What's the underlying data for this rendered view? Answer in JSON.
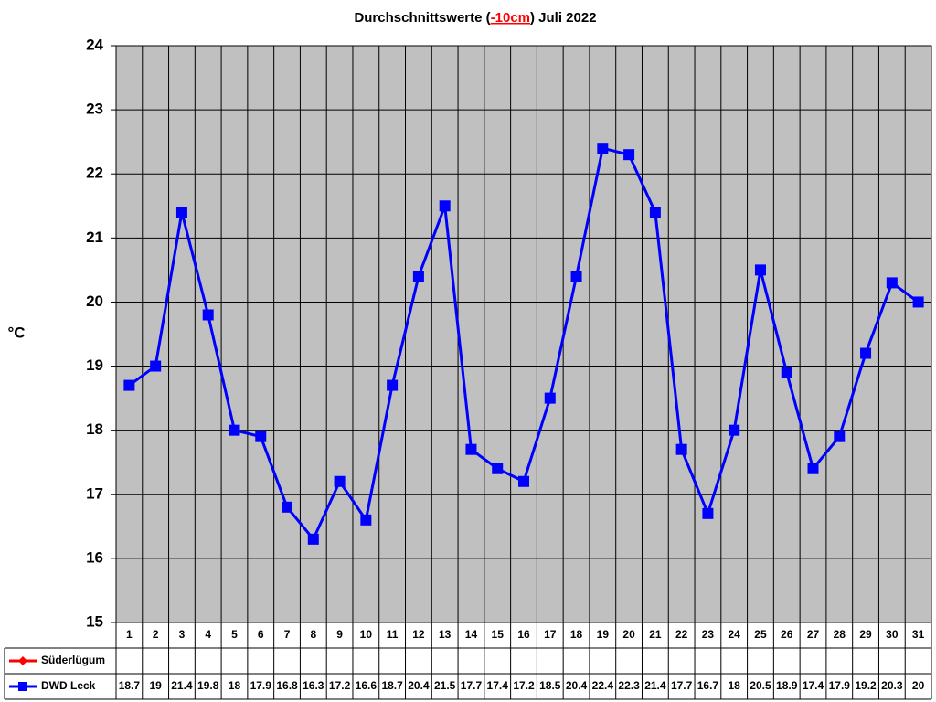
{
  "chart_data": {
    "type": "line",
    "title_parts": [
      "Durchschnittswerte (",
      "-10cm",
      ") Juli 2022"
    ],
    "y_label": "°C",
    "categories": [
      "1",
      "2",
      "3",
      "4",
      "5",
      "6",
      "7",
      "8",
      "9",
      "10",
      "11",
      "12",
      "13",
      "14",
      "15",
      "16",
      "17",
      "18",
      "19",
      "20",
      "21",
      "22",
      "23",
      "24",
      "25",
      "26",
      "27",
      "28",
      "29",
      "30",
      "31"
    ],
    "series": [
      {
        "name": "Süderlügum",
        "color": "#ff0000",
        "marker": "diamond",
        "values": [
          null,
          null,
          null,
          null,
          null,
          null,
          null,
          null,
          null,
          null,
          null,
          null,
          null,
          null,
          null,
          null,
          null,
          null,
          null,
          null,
          null,
          null,
          null,
          null,
          null,
          null,
          null,
          null,
          null,
          null,
          null
        ]
      },
      {
        "name": "DWD Leck",
        "color": "#0000ff",
        "marker": "square",
        "values": [
          18.7,
          19,
          21.4,
          19.8,
          18,
          17.9,
          16.8,
          16.3,
          17.2,
          16.6,
          18.7,
          20.4,
          21.5,
          17.7,
          17.4,
          17.2,
          18.5,
          20.4,
          22.4,
          22.3,
          21.4,
          17.7,
          16.7,
          18,
          20.5,
          18.9,
          17.4,
          17.9,
          19.2,
          20.3,
          20
        ]
      }
    ],
    "ylim": [
      15,
      24
    ],
    "yticks": [
      15,
      16,
      17,
      18,
      19,
      20,
      21,
      22,
      23,
      24
    ],
    "grid": true,
    "plot_background": "#c0c0c0"
  }
}
